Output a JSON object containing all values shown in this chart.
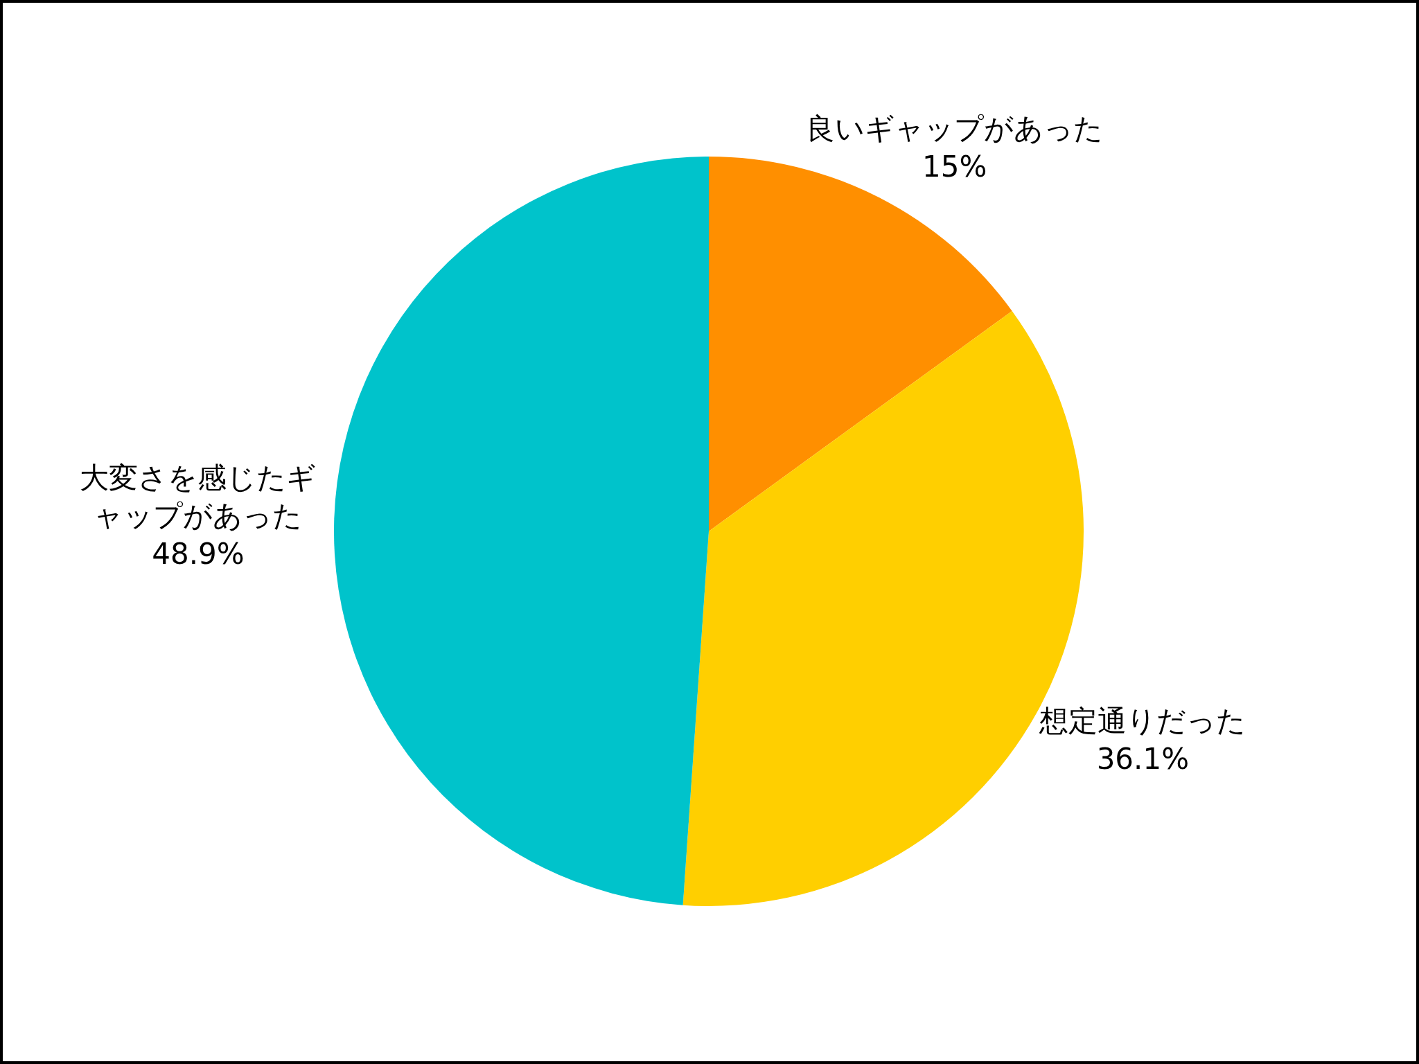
{
  "chart_data": {
    "type": "pie",
    "categories": [
      "良いギャップがあった",
      "想定通りだった",
      "大変さを感じたギャップがあった"
    ],
    "values": [
      15,
      36.1,
      48.9
    ],
    "value_labels": [
      "15%",
      "36.1%",
      "48.9%"
    ],
    "colors": [
      "#ff8f00",
      "#ffcf00",
      "#00c3cb"
    ]
  }
}
